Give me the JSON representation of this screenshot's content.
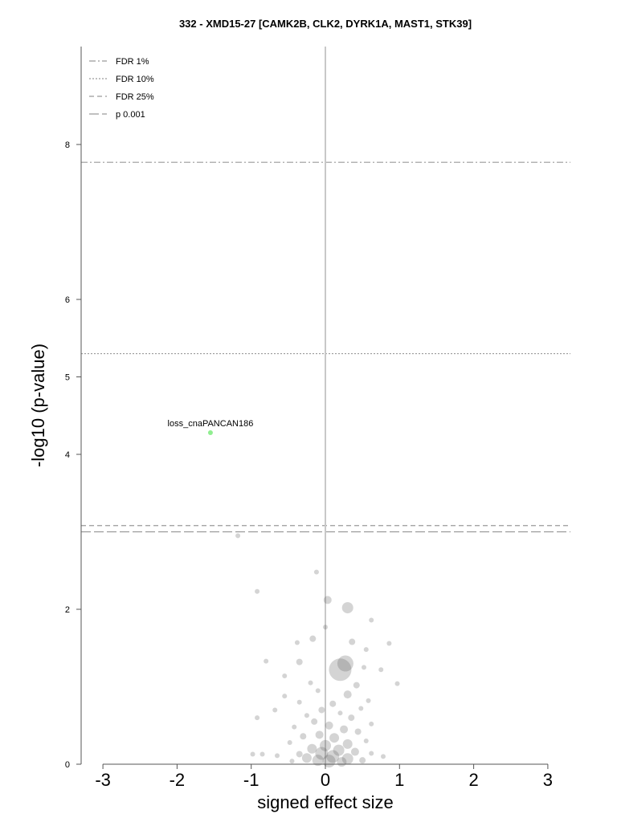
{
  "chart_data": {
    "type": "scatter",
    "title": "332 - XMD15-27 [CAMK2B, CLK2, DYRK1A, MAST1, STK39]",
    "xlabel": "signed effect size",
    "ylabel": "-log10 (p-value)",
    "xlim": [
      -3.3,
      3.3
    ],
    "ylim": [
      0,
      9.3
    ],
    "x_ticks": [
      -3,
      -2,
      -1,
      0,
      1,
      2,
      3
    ],
    "x_tick_labels": [
      "-3",
      "-2",
      "-1",
      "0",
      "1",
      "2",
      "3"
    ],
    "y_ticks": [
      0,
      2,
      4,
      5,
      6,
      8
    ],
    "y_tick_labels": [
      "0",
      "2",
      "4",
      "5",
      "6",
      "8"
    ],
    "legend_position": "top-left",
    "thresholds": [
      {
        "name": "FDR 1%",
        "y": 7.77,
        "style": "dash-dot"
      },
      {
        "name": "FDR 10%",
        "y": 5.3,
        "style": "dotted"
      },
      {
        "name": "FDR 25%",
        "y": 3.08,
        "style": "dashed"
      },
      {
        "name": "p 0.001",
        "y": 3.0,
        "style": "long-dash"
      }
    ],
    "highlight": {
      "label": "loss_cnaPANCAN186",
      "x": -1.55,
      "y": 4.28,
      "color": "#90ee90"
    },
    "points_color": "#555555",
    "points": [
      {
        "x": -1.18,
        "y": 2.95,
        "r": 3
      },
      {
        "x": -0.12,
        "y": 2.48,
        "r": 3
      },
      {
        "x": -0.92,
        "y": 2.23,
        "r": 3
      },
      {
        "x": 0.03,
        "y": 2.12,
        "r": 5
      },
      {
        "x": 0.3,
        "y": 2.02,
        "r": 7
      },
      {
        "x": 0.0,
        "y": 1.77,
        "r": 3
      },
      {
        "x": 0.62,
        "y": 1.86,
        "r": 3
      },
      {
        "x": -0.17,
        "y": 1.62,
        "r": 4
      },
      {
        "x": 0.36,
        "y": 1.58,
        "r": 4
      },
      {
        "x": 0.86,
        "y": 1.56,
        "r": 3
      },
      {
        "x": -0.38,
        "y": 1.57,
        "r": 3
      },
      {
        "x": 0.55,
        "y": 1.48,
        "r": 3
      },
      {
        "x": 0.27,
        "y": 1.3,
        "r": 10
      },
      {
        "x": 0.2,
        "y": 1.22,
        "r": 14
      },
      {
        "x": -0.35,
        "y": 1.32,
        "r": 4
      },
      {
        "x": -0.8,
        "y": 1.33,
        "r": 3
      },
      {
        "x": 0.52,
        "y": 1.25,
        "r": 3
      },
      {
        "x": 0.75,
        "y": 1.22,
        "r": 3
      },
      {
        "x": 0.97,
        "y": 1.04,
        "r": 3
      },
      {
        "x": -0.55,
        "y": 1.14,
        "r": 3
      },
      {
        "x": -0.2,
        "y": 1.05,
        "r": 3
      },
      {
        "x": 0.42,
        "y": 1.02,
        "r": 4
      },
      {
        "x": -0.1,
        "y": 0.95,
        "r": 3
      },
      {
        "x": 0.3,
        "y": 0.9,
        "r": 5
      },
      {
        "x": -0.55,
        "y": 0.88,
        "r": 3
      },
      {
        "x": 0.58,
        "y": 0.82,
        "r": 3
      },
      {
        "x": -0.35,
        "y": 0.8,
        "r": 3
      },
      {
        "x": 0.1,
        "y": 0.78,
        "r": 4
      },
      {
        "x": 0.48,
        "y": 0.72,
        "r": 3
      },
      {
        "x": -0.05,
        "y": 0.7,
        "r": 4
      },
      {
        "x": -0.68,
        "y": 0.7,
        "r": 3
      },
      {
        "x": 0.2,
        "y": 0.66,
        "r": 3
      },
      {
        "x": -0.25,
        "y": 0.63,
        "r": 3
      },
      {
        "x": 0.35,
        "y": 0.6,
        "r": 4
      },
      {
        "x": -0.92,
        "y": 0.6,
        "r": 3
      },
      {
        "x": -0.15,
        "y": 0.55,
        "r": 4
      },
      {
        "x": 0.62,
        "y": 0.52,
        "r": 3
      },
      {
        "x": 0.05,
        "y": 0.5,
        "r": 5
      },
      {
        "x": -0.42,
        "y": 0.48,
        "r": 3
      },
      {
        "x": 0.25,
        "y": 0.45,
        "r": 5
      },
      {
        "x": 0.44,
        "y": 0.42,
        "r": 4
      },
      {
        "x": -0.08,
        "y": 0.38,
        "r": 5
      },
      {
        "x": -0.3,
        "y": 0.36,
        "r": 4
      },
      {
        "x": 0.12,
        "y": 0.34,
        "r": 6
      },
      {
        "x": 0.55,
        "y": 0.3,
        "r": 3
      },
      {
        "x": -0.48,
        "y": 0.28,
        "r": 3
      },
      {
        "x": 0.3,
        "y": 0.26,
        "r": 6
      },
      {
        "x": 0.0,
        "y": 0.24,
        "r": 7
      },
      {
        "x": -0.18,
        "y": 0.2,
        "r": 6
      },
      {
        "x": 0.18,
        "y": 0.18,
        "r": 7
      },
      {
        "x": 0.4,
        "y": 0.16,
        "r": 5
      },
      {
        "x": -0.05,
        "y": 0.14,
        "r": 8
      },
      {
        "x": -0.35,
        "y": 0.13,
        "r": 4
      },
      {
        "x": -0.98,
        "y": 0.13,
        "r": 3
      },
      {
        "x": -0.85,
        "y": 0.13,
        "r": 3
      },
      {
        "x": -0.65,
        "y": 0.11,
        "r": 3
      },
      {
        "x": 0.1,
        "y": 0.1,
        "r": 8
      },
      {
        "x": 0.62,
        "y": 0.14,
        "r": 3
      },
      {
        "x": 0.78,
        "y": 0.1,
        "r": 3
      },
      {
        "x": -0.25,
        "y": 0.08,
        "r": 6
      },
      {
        "x": 0.3,
        "y": 0.07,
        "r": 7
      },
      {
        "x": -0.1,
        "y": 0.05,
        "r": 7
      },
      {
        "x": 0.05,
        "y": 0.04,
        "r": 8
      },
      {
        "x": 0.22,
        "y": 0.03,
        "r": 6
      },
      {
        "x": 0.5,
        "y": 0.05,
        "r": 4
      },
      {
        "x": -0.45,
        "y": 0.04,
        "r": 3
      }
    ]
  }
}
